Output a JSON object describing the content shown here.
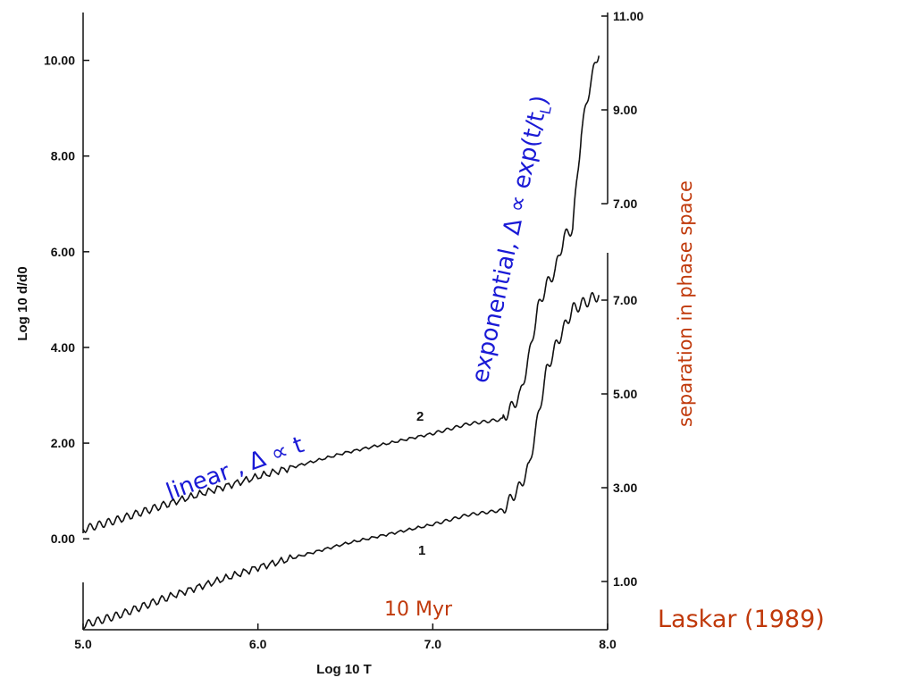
{
  "chart_data": {
    "type": "line",
    "xlabel": "Log 10 T",
    "ylabel": "Log 10 d/d0",
    "xlim": [
      5.0,
      8.0
    ],
    "ylim": [
      -1.9,
      11.0
    ],
    "x_ticks": [
      "5.0",
      "6.0",
      "7.0",
      "8.0"
    ],
    "y_ticks": [
      {
        "v": 0,
        "label": "0.00"
      },
      {
        "v": 2,
        "label": "2.00"
      },
      {
        "v": 4,
        "label": "4.00"
      },
      {
        "v": 6,
        "label": "6.00"
      },
      {
        "v": 8,
        "label": "8.00"
      },
      {
        "v": 10,
        "label": "10.00"
      }
    ],
    "right_axis_upper_ticks": [
      {
        "y": 11.0,
        "label": "11.00"
      },
      {
        "y": 9.0,
        "label": "9.00"
      },
      {
        "y": 7.0,
        "label": "7.00"
      }
    ],
    "right_axis_lower_ticks": [
      {
        "y": 7.0,
        "label": "7.00"
      },
      {
        "y": 5.0,
        "label": "5.00"
      },
      {
        "y": 3.0,
        "label": "3.00"
      },
      {
        "y": 1.0,
        "label": "1.00"
      }
    ],
    "right_axis_label": "separation in phase space",
    "series": [
      {
        "name": "2",
        "x": [
          5.0,
          5.2,
          5.5,
          6.0,
          6.5,
          7.0,
          7.2,
          7.4,
          7.5,
          7.55,
          7.6,
          7.65,
          7.7,
          7.75,
          7.8,
          7.85,
          7.9,
          7.95
        ],
        "y": [
          0.2,
          0.4,
          0.75,
          1.3,
          1.8,
          2.2,
          2.4,
          2.5,
          3.0,
          3.8,
          4.8,
          5.3,
          5.6,
          6.3,
          6.5,
          8.5,
          9.5,
          10.2
        ]
      },
      {
        "name": "1",
        "x": [
          5.0,
          5.2,
          5.5,
          6.0,
          6.5,
          7.0,
          7.2,
          7.4,
          7.5,
          7.55,
          7.6,
          7.65,
          7.7,
          7.75,
          7.8,
          7.85,
          7.9,
          7.95
        ],
        "y": [
          -1.8,
          -1.6,
          -1.2,
          -0.6,
          -0.1,
          0.3,
          0.5,
          0.6,
          1.1,
          1.5,
          2.5,
          3.5,
          4.0,
          4.4,
          4.8,
          4.9,
          5.0,
          5.1
        ]
      }
    ]
  },
  "annotations": {
    "linear": "linear , Δ ∝ t",
    "exponential_prefix": "exponential, Δ ∝ exp(t/t",
    "exponential_sub": "L",
    "exponential_suffix": ")",
    "ten_myr": "10 Myr",
    "credit": "Laskar (1989)"
  },
  "colors": {
    "annotation_blue": "#1a1ad6",
    "annotation_red": "#c0390b",
    "line": "#111111"
  }
}
